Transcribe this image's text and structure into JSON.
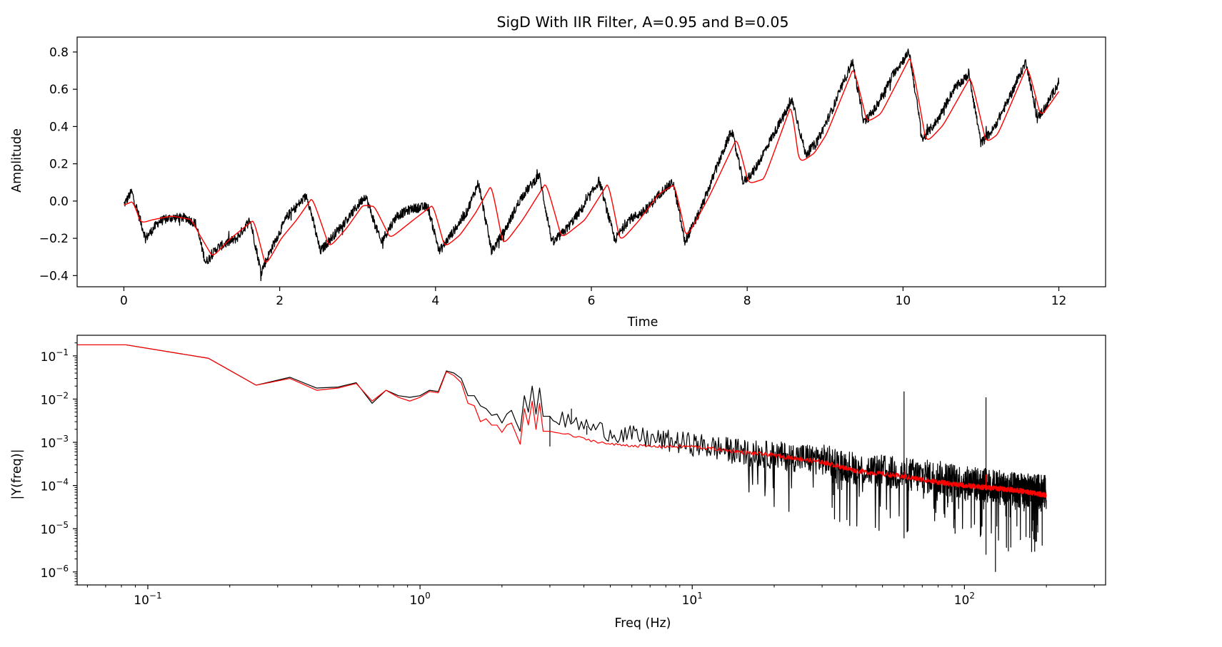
{
  "chart_data": [
    {
      "type": "line",
      "title": "SigD With IIR Filter, A=0.95 and B=0.05",
      "xlabel": "Time",
      "ylabel": "Amplitude",
      "xlim": [
        -0.6,
        12.6
      ],
      "ylim": [
        -0.46,
        0.88
      ],
      "xticks": [
        0,
        2,
        4,
        6,
        8,
        10,
        12
      ],
      "xtick_labels": [
        "0",
        "2",
        "4",
        "6",
        "8",
        "10",
        "12"
      ],
      "yticks": [
        -0.4,
        -0.2,
        0.0,
        0.2,
        0.4,
        0.6,
        0.8
      ],
      "ytick_labels": [
        "−0.4",
        "−0.2",
        "0.0",
        "0.2",
        "0.4",
        "0.6",
        "0.8"
      ],
      "grid": false,
      "series": [
        {
          "color": "#000000",
          "noise_amplitude": 0.025,
          "x": [
            0.0,
            0.1,
            0.28,
            0.45,
            0.6,
            0.8,
            0.92,
            1.05,
            1.2,
            1.45,
            1.62,
            1.76,
            1.9,
            2.1,
            2.35,
            2.52,
            2.7,
            2.9,
            3.1,
            3.3,
            3.5,
            3.7,
            3.9,
            4.05,
            4.2,
            4.4,
            4.55,
            4.72,
            4.9,
            5.1,
            5.33,
            5.5,
            5.7,
            5.9,
            6.1,
            6.3,
            6.48,
            6.7,
            6.9,
            7.05,
            7.2,
            7.4,
            7.6,
            7.8,
            7.95,
            8.1,
            8.3,
            8.58,
            8.75,
            8.9,
            9.1,
            9.35,
            9.5,
            9.65,
            9.9,
            10.08,
            10.25,
            10.45,
            10.65,
            10.85,
            11.0,
            11.15,
            11.35,
            11.58,
            11.72,
            11.85,
            12.0
          ],
          "y": [
            -0.02,
            0.05,
            -0.2,
            -0.11,
            -0.09,
            -0.09,
            -0.12,
            -0.33,
            -0.25,
            -0.2,
            -0.1,
            -0.38,
            -0.25,
            -0.08,
            0.03,
            -0.27,
            -0.18,
            -0.08,
            0.03,
            -0.22,
            -0.08,
            -0.04,
            -0.03,
            -0.27,
            -0.18,
            -0.06,
            0.1,
            -0.27,
            -0.15,
            0.02,
            0.14,
            -0.23,
            -0.14,
            -0.03,
            0.11,
            -0.21,
            -0.1,
            -0.05,
            0.05,
            0.1,
            -0.22,
            -0.05,
            0.17,
            0.38,
            0.1,
            0.17,
            0.33,
            0.54,
            0.25,
            0.32,
            0.5,
            0.75,
            0.42,
            0.5,
            0.7,
            0.8,
            0.33,
            0.44,
            0.6,
            0.68,
            0.31,
            0.38,
            0.54,
            0.75,
            0.44,
            0.52,
            0.64
          ]
        },
        {
          "color": "#ff0000",
          "noise_amplitude": 0,
          "x": [
            0.0,
            0.1,
            0.2,
            0.35,
            0.6,
            0.85,
            0.95,
            1.12,
            1.35,
            1.65,
            1.8,
            2.0,
            2.2,
            2.4,
            2.62,
            2.85,
            3.05,
            3.2,
            3.4,
            3.7,
            3.95,
            4.1,
            4.3,
            4.5,
            4.7,
            4.85,
            5.1,
            5.4,
            5.6,
            5.9,
            6.2,
            6.35,
            6.6,
            6.85,
            7.05,
            7.2,
            7.5,
            7.85,
            8.0,
            8.2,
            8.55,
            8.65,
            8.85,
            9.0,
            9.35,
            9.52,
            9.7,
            10.08,
            10.28,
            10.5,
            10.85,
            11.05,
            11.2,
            11.58,
            11.75,
            12.0
          ],
          "y": [
            -0.02,
            0.0,
            -0.12,
            -0.1,
            -0.08,
            -0.1,
            -0.18,
            -0.3,
            -0.2,
            -0.1,
            -0.35,
            -0.2,
            -0.1,
            0.02,
            -0.25,
            -0.14,
            -0.02,
            -0.03,
            -0.2,
            -0.1,
            -0.02,
            -0.25,
            -0.18,
            -0.06,
            0.09,
            -0.24,
            -0.1,
            0.1,
            -0.2,
            -0.1,
            0.1,
            -0.22,
            -0.1,
            0.04,
            0.09,
            -0.2,
            0.03,
            0.34,
            0.09,
            0.12,
            0.52,
            0.2,
            0.26,
            0.36,
            0.72,
            0.42,
            0.47,
            0.78,
            0.31,
            0.41,
            0.67,
            0.31,
            0.36,
            0.73,
            0.45,
            0.6
          ]
        }
      ]
    },
    {
      "type": "line",
      "title": "",
      "xlabel": "Freq (Hz)",
      "ylabel": "|Y(freq)|",
      "xscale": "log",
      "yscale": "log",
      "xlim": [
        0.055,
        330
      ],
      "ylim": [
        5e-07,
        0.3
      ],
      "xticks": [
        0.1,
        1,
        10,
        100
      ],
      "xtick_labels": [
        {
          "base": "10",
          "exp": "−1"
        },
        {
          "base": "10",
          "exp": "0"
        },
        {
          "base": "10",
          "exp": "1"
        },
        {
          "base": "10",
          "exp": "2"
        }
      ],
      "yticks": [
        1e-06,
        1e-05,
        0.0001,
        0.001,
        0.01,
        0.1
      ],
      "ytick_labels": [
        {
          "base": "10",
          "exp": "−6"
        },
        {
          "base": "10",
          "exp": "−5"
        },
        {
          "base": "10",
          "exp": "−4"
        },
        {
          "base": "10",
          "exp": "−3"
        },
        {
          "base": "10",
          "exp": "−2"
        },
        {
          "base": "10",
          "exp": "−1"
        }
      ],
      "grid": false,
      "series": [
        {
          "color": "#000000",
          "noise_decades": 0.8,
          "x": [
            0.05,
            0.0833,
            0.167,
            0.25,
            0.333,
            0.417,
            0.5,
            0.583,
            0.667,
            0.75,
            0.833,
            0.917,
            1.0,
            1.083,
            1.167,
            1.25,
            1.333,
            1.417,
            1.5,
            1.583,
            1.667,
            1.75,
            1.833,
            1.917,
            2.0,
            2.083,
            2.167,
            2.25,
            2.333,
            2.417,
            2.5,
            2.583,
            2.667,
            2.75,
            2.833,
            2.917,
            3.0,
            3.5,
            4.0,
            5.0,
            7.0,
            10.0,
            15.0,
            20.0,
            30.0,
            40.0,
            60.0,
            80.0,
            100.0,
            120.0,
            150.0,
            200.0
          ],
          "y": [
            0.18,
            0.18,
            0.088,
            0.021,
            0.032,
            0.018,
            0.019,
            0.024,
            0.008,
            0.016,
            0.012,
            0.011,
            0.012,
            0.016,
            0.015,
            0.045,
            0.04,
            0.03,
            0.012,
            0.012,
            0.007,
            0.006,
            0.0042,
            0.0045,
            0.0028,
            0.0045,
            0.0055,
            0.003,
            0.0018,
            0.012,
            0.005,
            0.02,
            0.0045,
            0.018,
            0.004,
            0.004,
            0.004,
            0.003,
            0.0025,
            0.0017,
            0.0012,
            0.0009,
            0.0006,
            0.0005,
            0.0004,
            0.00025,
            0.00018,
            0.00015,
            0.00012,
            0.0001,
            8e-05,
            7e-05
          ],
          "spikes": [
            {
              "x": 3.0,
              "y": 0.0008
            },
            {
              "x": 3.6,
              "y": 0.006
            },
            {
              "x": 4.1,
              "y": 0.0015
            },
            {
              "x": 20.0,
              "y": 0.00012
            },
            {
              "x": 33.0,
              "y": 6e-05
            },
            {
              "x": 60.0,
              "y": 0.015
            },
            {
              "x": 60.0,
              "y": 6e-06
            },
            {
              "x": 120.0,
              "y": 0.011
            },
            {
              "x": 120.0,
              "y": 2.5e-06
            },
            {
              "x": 130.0,
              "y": 1e-06
            },
            {
              "x": 145.0,
              "y": 3e-06
            }
          ]
        },
        {
          "color": "#ff0000",
          "noise_decades": 0.12,
          "x": [
            0.05,
            0.0833,
            0.167,
            0.25,
            0.333,
            0.417,
            0.5,
            0.583,
            0.667,
            0.75,
            0.833,
            0.917,
            1.0,
            1.083,
            1.167,
            1.25,
            1.333,
            1.417,
            1.5,
            1.583,
            1.667,
            1.75,
            1.833,
            1.917,
            2.0,
            2.083,
            2.167,
            2.25,
            2.333,
            2.417,
            2.5,
            2.583,
            2.667,
            2.75,
            2.833,
            2.917,
            3.0,
            3.5,
            4.0,
            5.0,
            7.0,
            10.0,
            15.0,
            20.0,
            30.0,
            40.0,
            60.0,
            80.0,
            100.0,
            120.0,
            150.0,
            200.0
          ],
          "y": [
            0.18,
            0.18,
            0.088,
            0.021,
            0.03,
            0.016,
            0.018,
            0.023,
            0.009,
            0.016,
            0.011,
            0.009,
            0.011,
            0.015,
            0.014,
            0.043,
            0.035,
            0.024,
            0.008,
            0.007,
            0.003,
            0.0035,
            0.0025,
            0.0025,
            0.0017,
            0.0025,
            0.0028,
            0.0016,
            0.0009,
            0.006,
            0.0025,
            0.009,
            0.002,
            0.008,
            0.0018,
            0.0018,
            0.0018,
            0.0015,
            0.0012,
            0.0009,
            0.0008,
            0.0008,
            0.0006,
            0.0005,
            0.00035,
            0.00022,
            0.00016,
            0.00012,
            0.0001,
            9e-05,
            8e-05,
            6e-05
          ],
          "spikes": [
            {
              "x": 60.0,
              "y": 0.00022
            },
            {
              "x": 120.0,
              "y": 0.00018
            }
          ]
        }
      ]
    }
  ]
}
